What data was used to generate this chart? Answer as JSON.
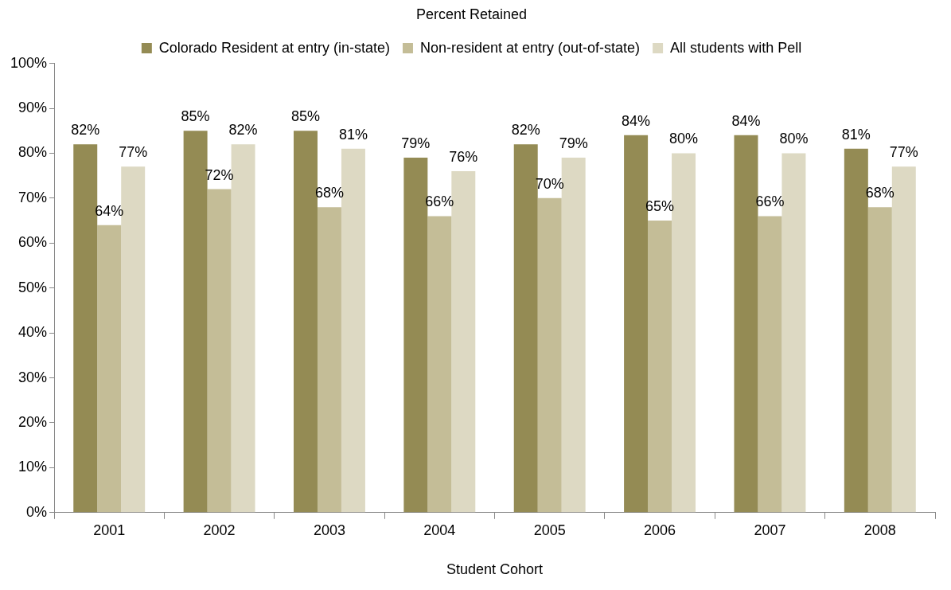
{
  "chart_data": {
    "type": "bar",
    "title": "Percent Retained",
    "xlabel": "Student Cohort",
    "categories": [
      "2001",
      "2002",
      "2003",
      "2004",
      "2005",
      "2006",
      "2007",
      "2008"
    ],
    "series": [
      {
        "name": "Colorado Resident at entry (in-state)",
        "color": "#948b54",
        "values": [
          82,
          85,
          85,
          79,
          82,
          84,
          84,
          81
        ],
        "value_labels": [
          "82%",
          "85%",
          "85%",
          "79%",
          "82%",
          "84%",
          "84%",
          "81%"
        ]
      },
      {
        "name": "Non-resident at entry (out-of-state)",
        "color": "#c4bd97",
        "values": [
          64,
          72,
          68,
          66,
          70,
          65,
          66,
          68
        ],
        "value_labels": [
          "64%",
          "72%",
          "68%",
          "66%",
          "70%",
          "65%",
          "66%",
          "68%"
        ]
      },
      {
        "name": "All students with Pell",
        "color": "#ddd9c3",
        "values": [
          77,
          82,
          81,
          76,
          79,
          80,
          80,
          77
        ],
        "value_labels": [
          "77%",
          "82%",
          "81%",
          "76%",
          "79%",
          "80%",
          "80%",
          "77%"
        ]
      }
    ],
    "ylim": [
      0,
      100
    ],
    "yticks": [
      {
        "value": 0,
        "label": "0%"
      },
      {
        "value": 10,
        "label": "10%"
      },
      {
        "value": 20,
        "label": "20%"
      },
      {
        "value": 30,
        "label": "30%"
      },
      {
        "value": 40,
        "label": "40%"
      },
      {
        "value": 50,
        "label": "50%"
      },
      {
        "value": 60,
        "label": "60%"
      },
      {
        "value": 70,
        "label": "70%"
      },
      {
        "value": 80,
        "label": "80%"
      },
      {
        "value": 90,
        "label": "90%"
      },
      {
        "value": 100,
        "label": "100%"
      }
    ],
    "grid": false,
    "legend": "top"
  }
}
